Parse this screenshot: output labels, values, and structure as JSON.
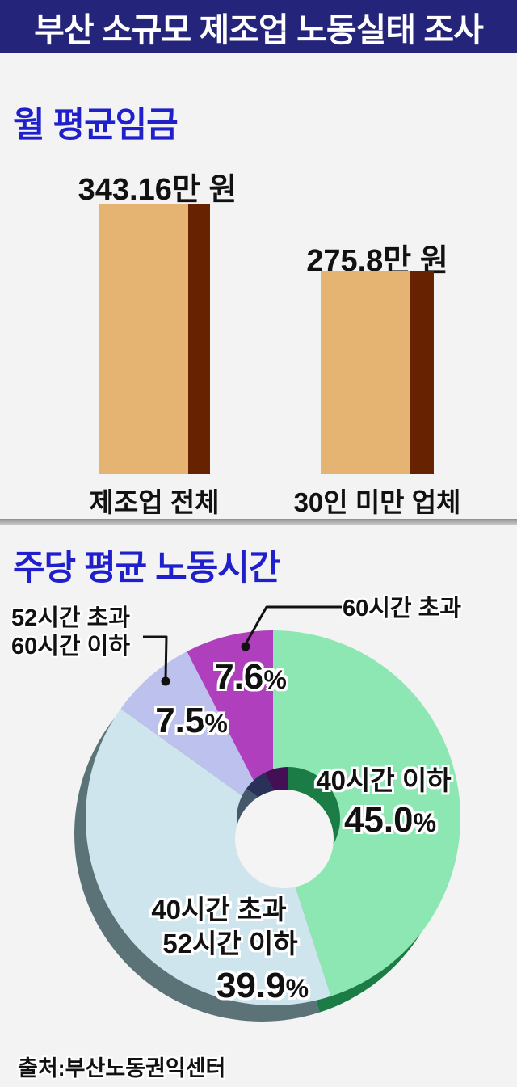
{
  "header": {
    "title": "부산 소규모 제조업 노동실태 조사"
  },
  "wage_section": {
    "title": "월 평균임금",
    "bars": [
      {
        "value_label": "343.16만 원",
        "category": "제조업 전체"
      },
      {
        "value_label": "275.8만 원",
        "category": "30인 미만 업체"
      }
    ]
  },
  "hours_section": {
    "title": "주당 평균 노동시간",
    "callout_52_60_line1": "52시간 초과",
    "callout_52_60_line2": "60시간 이하",
    "callout_60": "60시간 초과",
    "pct_60_over": {
      "num": "7.6",
      "sym": "%"
    },
    "pct_52_60": {
      "num": "7.5",
      "sym": "%"
    },
    "seg_40": {
      "name": "40시간 이하",
      "num": "45.0",
      "sym": "%"
    },
    "seg_40_52": {
      "name1": "40시간 초과",
      "name2": "52시간 이하",
      "num": "39.9",
      "sym": "%"
    }
  },
  "source": {
    "label": "출처:부산노동권익센터"
  },
  "colors": {
    "background": "#f3f3f3",
    "header_bg": "#24247a",
    "header_text": "#ffffff",
    "section_title": "#1f1fcc",
    "bar_face": "#e5b372",
    "bar_side": "#672301",
    "text": "#111111"
  },
  "chart_data": [
    {
      "type": "bar",
      "title": "월 평균임금",
      "categories": [
        "제조업 전체",
        "30인 미만 업체"
      ],
      "values": [
        343.16,
        275.8
      ],
      "unit": "만 원",
      "data_labels": [
        "343.16만 원",
        "275.8만 원"
      ],
      "bar_face_color": "#e5b372",
      "bar_side_color": "#672301"
    },
    {
      "type": "pie",
      "title": "주당 평균 노동시간",
      "donut": true,
      "start_angle_deg": 0,
      "direction": "clockwise",
      "labels": [
        "40시간 이하",
        "40시간 초과 52시간 이하",
        "52시간 초과 60시간 이하",
        "60시간 초과"
      ],
      "values": [
        45.0,
        39.9,
        7.5,
        7.6
      ],
      "colors": [
        "#8de7b2",
        "#cfe5ee",
        "#bdc1ee",
        "#b03fbe"
      ],
      "depth_colors": [
        "#1c7c46",
        "#5b7377",
        "#5b7377",
        "#8a2f9a"
      ],
      "inner_colors": [
        "#1c7c46",
        "#44576b",
        "#2a3158",
        "#441055"
      ],
      "hole_color": "#f4f4f4"
    }
  ]
}
